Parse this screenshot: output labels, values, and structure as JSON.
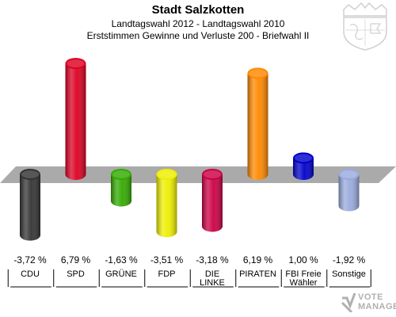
{
  "header": {
    "title": "Stadt Salzkotten",
    "subtitle1": "Landtagswahl 2012 - Landtagswahl 2010",
    "subtitle2": "Erststimmen Gewinne und Verluste 200 - Briefwahl II"
  },
  "logo": {
    "line1": "VOTE",
    "line2": "MANAGER"
  },
  "chart_data": {
    "type": "bar",
    "title": "Stadt Salzkotten",
    "categories": [
      "CDU",
      "SPD",
      "GRÜNE",
      "FDP",
      "DIE LINKE",
      "PIRATEN",
      "FBI Freie Wähler",
      "Sonstige"
    ],
    "category_lines": [
      [
        "CDU"
      ],
      [
        "SPD"
      ],
      [
        "GRÜNE"
      ],
      [
        "FDP"
      ],
      [
        "DIE",
        "LINKE"
      ],
      [
        "PIRATEN"
      ],
      [
        "FBI Freie",
        "Wähler"
      ],
      [
        "Sonstige"
      ]
    ],
    "values": [
      -3.72,
      6.79,
      -1.63,
      -3.51,
      -3.18,
      6.19,
      1.0,
      -1.92
    ],
    "value_labels": [
      "-3,72 %",
      "6,79 %",
      "-1,63 %",
      "-3,51 %",
      "-3,18 %",
      "6,19 %",
      "1,00 %",
      "-1,92 %"
    ],
    "colors": [
      "#333333",
      "#dd0022",
      "#33aa00",
      "#eeee00",
      "#cc0044",
      "#ff8800",
      "#0000cc",
      "#99aadd"
    ],
    "xlabel": "",
    "ylabel": "",
    "grid": false,
    "legend": "none"
  }
}
